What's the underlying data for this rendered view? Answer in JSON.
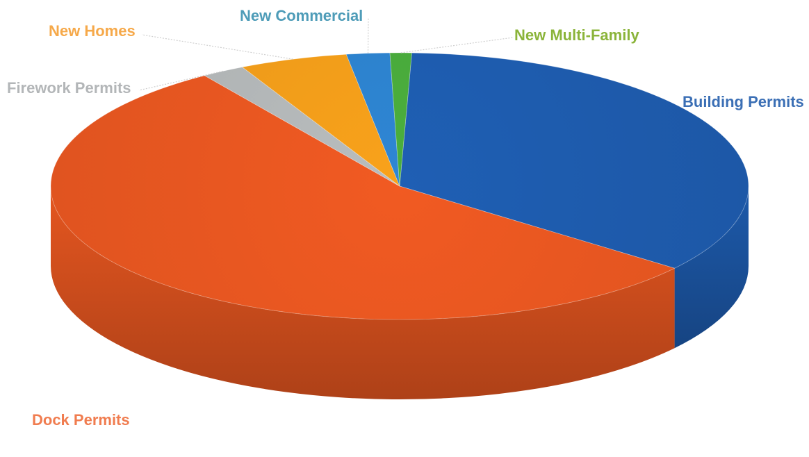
{
  "chart_data": {
    "type": "pie",
    "title": "",
    "slices": [
      {
        "label": "Building Permits",
        "value": 35.0,
        "color": "#1F5FB4",
        "label_color": "#3B6FB5"
      },
      {
        "label": "Dock Permits",
        "value": 55.0,
        "color": "#F15A22",
        "label_color": "#F07C4F"
      },
      {
        "label": "Firework Permits",
        "value": 2.0,
        "color": "#B9BDBE",
        "label_color": "#B3B6B8"
      },
      {
        "label": "New Homes",
        "value": 5.0,
        "color": "#F9A21B",
        "label_color": "#F6A94A"
      },
      {
        "label": "New Commercial",
        "value": 2.0,
        "color": "#2E86D4",
        "label_color": "#4E9CB8"
      },
      {
        "label": "New Multi-Family",
        "value": 1.0,
        "color": "#4BAF3D",
        "label_color": "#8BB43A"
      }
    ],
    "order": "clockwise",
    "style": "3d",
    "legend": "none",
    "data_labels": "category name"
  }
}
